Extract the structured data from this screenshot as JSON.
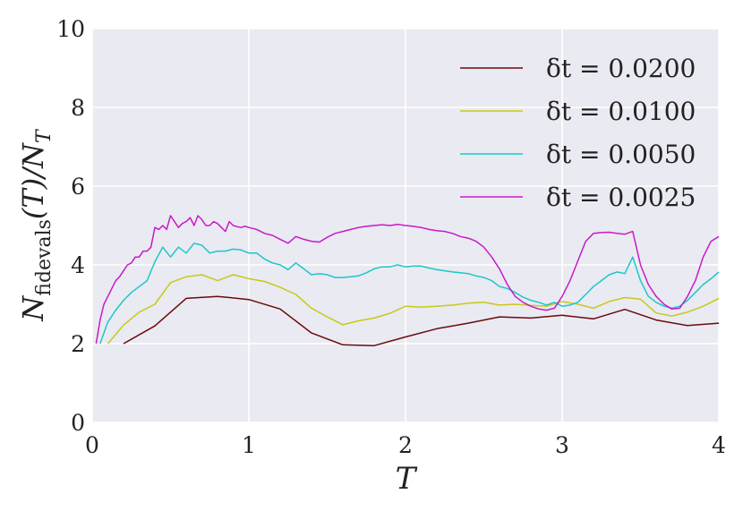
{
  "chart_data": {
    "type": "line",
    "xlabel": "T",
    "ylabel": "N_fidevals(T)/N_T",
    "ylabel_parts": {
      "main": "N",
      "sub": "fidevals",
      "mid": "(T)/N",
      "sub2": "T"
    },
    "xlim": [
      0,
      4
    ],
    "ylim": [
      0,
      10
    ],
    "xticks": [
      "0",
      "1",
      "2",
      "3",
      "4"
    ],
    "yticks": [
      "0",
      "2",
      "4",
      "6",
      "8",
      "10"
    ],
    "grid": true,
    "legend_position": "top-right",
    "background": "#eaeaf2",
    "series": [
      {
        "name": "δt = 0.0200",
        "color": "#6b0a0a",
        "x": [
          0.2,
          0.4,
          0.6,
          0.8,
          1.0,
          1.2,
          1.4,
          1.6,
          1.8,
          2.0,
          2.2,
          2.4,
          2.6,
          2.8,
          3.0,
          3.2,
          3.4,
          3.6,
          3.8,
          4.0
        ],
        "y": [
          2.0,
          2.45,
          3.15,
          3.2,
          3.12,
          2.88,
          2.27,
          1.97,
          1.95,
          2.17,
          2.38,
          2.52,
          2.68,
          2.65,
          2.72,
          2.63,
          2.87,
          2.6,
          2.46,
          2.52
        ]
      },
      {
        "name": "δt = 0.0100",
        "color": "#c8c81a",
        "x": [
          0.1,
          0.2,
          0.3,
          0.4,
          0.5,
          0.6,
          0.7,
          0.8,
          0.9,
          1.0,
          1.1,
          1.2,
          1.3,
          1.4,
          1.5,
          1.6,
          1.7,
          1.8,
          1.9,
          2.0,
          2.1,
          2.2,
          2.3,
          2.4,
          2.5,
          2.6,
          2.7,
          2.8,
          2.9,
          3.0,
          3.1,
          3.2,
          3.3,
          3.4,
          3.5,
          3.6,
          3.7,
          3.8,
          3.9,
          4.0
        ],
        "y": [
          2.0,
          2.47,
          2.8,
          3.0,
          3.55,
          3.7,
          3.75,
          3.6,
          3.75,
          3.65,
          3.58,
          3.43,
          3.25,
          2.9,
          2.68,
          2.48,
          2.58,
          2.65,
          2.77,
          2.95,
          2.93,
          2.95,
          2.98,
          3.03,
          3.05,
          2.98,
          3.0,
          2.97,
          2.95,
          3.07,
          3.0,
          2.9,
          3.07,
          3.17,
          3.13,
          2.78,
          2.7,
          2.8,
          2.95,
          3.15
        ]
      },
      {
        "name": "δt = 0.0050",
        "color": "#1ac8c8",
        "x": [
          0.05,
          0.1,
          0.15,
          0.2,
          0.25,
          0.3,
          0.35,
          0.4,
          0.45,
          0.5,
          0.55,
          0.6,
          0.65,
          0.7,
          0.75,
          0.8,
          0.85,
          0.9,
          0.95,
          1.0,
          1.05,
          1.1,
          1.15,
          1.2,
          1.25,
          1.3,
          1.35,
          1.4,
          1.45,
          1.5,
          1.55,
          1.6,
          1.65,
          1.7,
          1.75,
          1.8,
          1.85,
          1.9,
          1.95,
          2.0,
          2.05,
          2.1,
          2.15,
          2.2,
          2.25,
          2.3,
          2.35,
          2.4,
          2.45,
          2.5,
          2.55,
          2.6,
          2.65,
          2.7,
          2.75,
          2.8,
          2.85,
          2.9,
          2.95,
          3.0,
          3.05,
          3.1,
          3.15,
          3.2,
          3.25,
          3.3,
          3.35,
          3.4,
          3.45,
          3.5,
          3.55,
          3.6,
          3.65,
          3.7,
          3.75,
          3.8,
          3.85,
          3.9,
          3.95,
          4.0
        ],
        "y": [
          2.0,
          2.55,
          2.85,
          3.1,
          3.3,
          3.45,
          3.6,
          4.08,
          4.45,
          4.2,
          4.45,
          4.3,
          4.55,
          4.5,
          4.3,
          4.35,
          4.35,
          4.4,
          4.38,
          4.3,
          4.3,
          4.15,
          4.05,
          4.0,
          3.88,
          4.05,
          3.9,
          3.75,
          3.78,
          3.75,
          3.68,
          3.68,
          3.7,
          3.72,
          3.8,
          3.9,
          3.95,
          3.95,
          4.0,
          3.95,
          3.97,
          3.97,
          3.92,
          3.88,
          3.85,
          3.82,
          3.8,
          3.78,
          3.72,
          3.68,
          3.6,
          3.45,
          3.4,
          3.3,
          3.18,
          3.1,
          3.05,
          2.98,
          3.05,
          2.95,
          2.98,
          3.05,
          3.25,
          3.45,
          3.6,
          3.75,
          3.82,
          3.78,
          4.2,
          3.6,
          3.2,
          3.05,
          2.95,
          2.9,
          2.95,
          3.1,
          3.3,
          3.5,
          3.65,
          3.82
        ]
      },
      {
        "name": "δt = 0.0025",
        "color": "#c81ac8",
        "x": [
          0.025,
          0.05,
          0.075,
          0.1,
          0.125,
          0.15,
          0.175,
          0.2,
          0.225,
          0.25,
          0.275,
          0.3,
          0.325,
          0.35,
          0.375,
          0.4,
          0.425,
          0.45,
          0.475,
          0.5,
          0.525,
          0.55,
          0.575,
          0.6,
          0.625,
          0.65,
          0.675,
          0.7,
          0.725,
          0.75,
          0.775,
          0.8,
          0.825,
          0.85,
          0.875,
          0.9,
          0.925,
          0.95,
          0.975,
          1.0,
          1.05,
          1.1,
          1.15,
          1.2,
          1.25,
          1.3,
          1.35,
          1.4,
          1.45,
          1.5,
          1.55,
          1.6,
          1.65,
          1.7,
          1.75,
          1.8,
          1.85,
          1.9,
          1.95,
          2.0,
          2.05,
          2.1,
          2.15,
          2.2,
          2.25,
          2.3,
          2.35,
          2.4,
          2.45,
          2.5,
          2.55,
          2.6,
          2.65,
          2.7,
          2.75,
          2.8,
          2.85,
          2.9,
          2.95,
          3.0,
          3.05,
          3.1,
          3.15,
          3.2,
          3.25,
          3.3,
          3.35,
          3.4,
          3.45,
          3.5,
          3.55,
          3.6,
          3.65,
          3.7,
          3.75,
          3.8,
          3.85,
          3.9,
          3.95,
          4.0
        ],
        "y": [
          2.0,
          2.6,
          3.0,
          3.2,
          3.4,
          3.6,
          3.7,
          3.85,
          4.0,
          4.05,
          4.2,
          4.2,
          4.35,
          4.35,
          4.45,
          4.95,
          4.9,
          5.0,
          4.9,
          5.25,
          5.1,
          4.95,
          5.05,
          5.1,
          5.2,
          5.0,
          5.25,
          5.15,
          5.0,
          5.0,
          5.1,
          5.05,
          4.95,
          4.85,
          5.1,
          5.0,
          4.97,
          4.95,
          4.98,
          4.95,
          4.9,
          4.8,
          4.75,
          4.65,
          4.55,
          4.72,
          4.65,
          4.6,
          4.58,
          4.7,
          4.8,
          4.85,
          4.9,
          4.95,
          4.98,
          5.0,
          5.02,
          5.0,
          5.03,
          5.0,
          4.98,
          4.95,
          4.9,
          4.87,
          4.85,
          4.8,
          4.72,
          4.68,
          4.6,
          4.45,
          4.2,
          3.9,
          3.5,
          3.2,
          3.05,
          2.95,
          2.88,
          2.85,
          2.9,
          3.2,
          3.6,
          4.1,
          4.6,
          4.8,
          4.82,
          4.83,
          4.8,
          4.78,
          4.85,
          4.0,
          3.5,
          3.2,
          3.0,
          2.88,
          2.9,
          3.2,
          3.6,
          4.2,
          4.6,
          4.72
        ]
      }
    ]
  }
}
